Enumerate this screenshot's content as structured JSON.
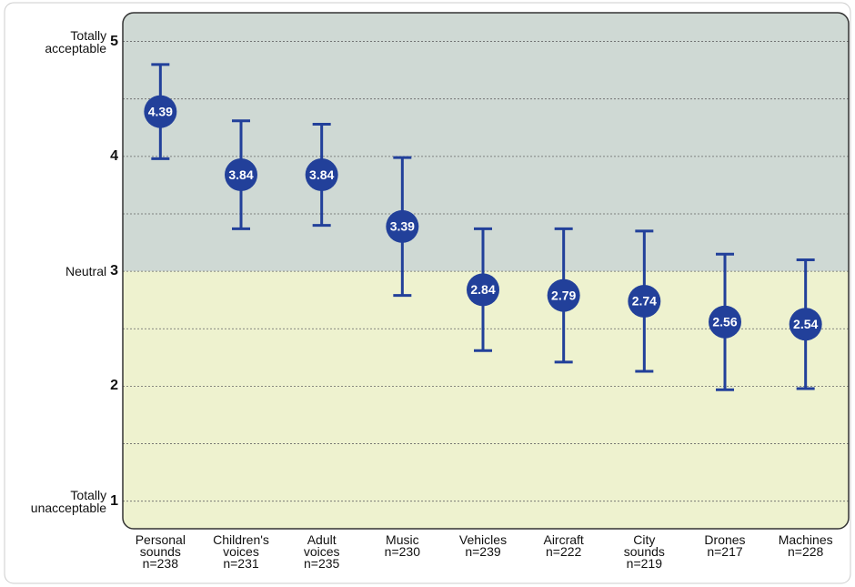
{
  "chart_data": {
    "type": "dot_errorbar",
    "categories": [
      "Personal sounds",
      "Children's voices",
      "Adult voices",
      "Music",
      "Vehicles",
      "Aircraft",
      "City sounds",
      "Drones",
      "Machines"
    ],
    "sample_sizes": [
      "n=238",
      "n=231",
      "n=235",
      "n=230",
      "n=239",
      "n=222",
      "n=219",
      "n=217",
      "n=228"
    ],
    "values": [
      4.39,
      3.84,
      3.84,
      3.39,
      2.84,
      2.79,
      2.74,
      2.56,
      2.54
    ],
    "errors": [
      0.41,
      0.47,
      0.44,
      0.6,
      0.53,
      0.58,
      0.61,
      0.59,
      0.56
    ],
    "color": "#22409a",
    "ylim": [
      0.76,
      5.25
    ],
    "yticks": [
      1,
      2,
      3,
      4,
      5
    ],
    "yminorticks": [
      1.5,
      2.5,
      3.5,
      4.5
    ],
    "ytick_descriptions": [
      {
        "value": 1,
        "label": "Totally unacceptable"
      },
      {
        "value": 3,
        "label": "Neutral"
      },
      {
        "value": 5,
        "label": "Totally acceptable"
      }
    ],
    "bands": [
      {
        "range": [
          3,
          5.25
        ],
        "color": "#cfd9d4"
      },
      {
        "range": [
          0.76,
          3
        ],
        "color": "#eef2cf"
      }
    ],
    "grid": true
  }
}
